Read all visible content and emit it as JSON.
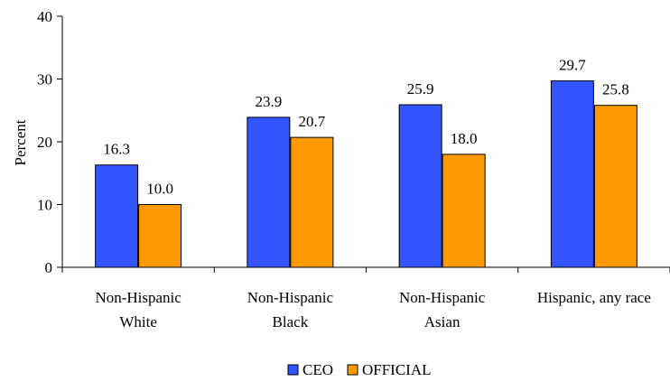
{
  "chart_data": {
    "type": "bar",
    "title": "",
    "xlabel": "",
    "ylabel": "Percent",
    "ylim": [
      0,
      40
    ],
    "yticks": [
      0,
      10,
      20,
      30,
      40
    ],
    "grid": false,
    "legend_position": "bottom",
    "categories": [
      [
        "Non-Hispanic",
        "White"
      ],
      [
        "Non-Hispanic",
        "Black"
      ],
      [
        "Non-Hispanic",
        "Asian"
      ],
      [
        "Hispanic, any race"
      ]
    ],
    "series": [
      {
        "name": "CEO",
        "color": "#3355ff",
        "values": [
          16.3,
          23.9,
          25.9,
          29.7
        ],
        "labels": [
          "16.3",
          "23.9",
          "25.9",
          "29.7"
        ]
      },
      {
        "name": "OFFICIAL",
        "color": "#ff9900",
        "values": [
          10.0,
          20.7,
          18.0,
          25.8
        ],
        "labels": [
          "10.0",
          "20.7",
          "18.0",
          "25.8"
        ]
      }
    ]
  }
}
